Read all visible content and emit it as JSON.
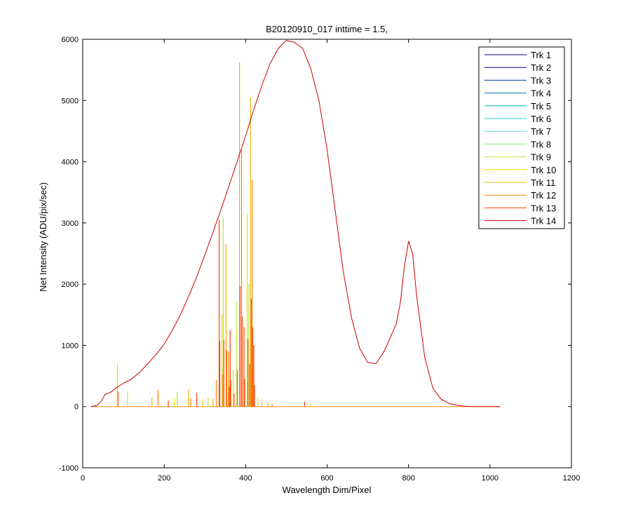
{
  "chart_data": {
    "type": "line",
    "title": "B20120910_017 inttime = 1.5,",
    "xlabel": "Wavelength Dim/Pixel",
    "ylabel": "Net Intensity (ADU/pix/sec)",
    "xlim": [
      0,
      1200
    ],
    "ylim": [
      -1000,
      6000
    ],
    "xticks": [
      0,
      200,
      400,
      600,
      800,
      1000,
      1200
    ],
    "yticks": [
      -1000,
      0,
      1000,
      2000,
      3000,
      4000,
      5000,
      6000
    ],
    "grid": false,
    "legend_position": "top-right",
    "series": [
      {
        "name": "Trk 1",
        "color": "#000080"
      },
      {
        "name": "Trk 2",
        "color": "#000099"
      },
      {
        "name": "Trk 3",
        "color": "#0040a0"
      },
      {
        "name": "Trk 4",
        "color": "#0070b0"
      },
      {
        "name": "Trk 5",
        "color": "#00b0d0"
      },
      {
        "name": "Trk 6",
        "color": "#20d0e0"
      },
      {
        "name": "Trk 7",
        "color": "#60e0e0"
      },
      {
        "name": "Trk 8",
        "color": "#90e080"
      },
      {
        "name": "Trk 9",
        "color": "#c0e040"
      },
      {
        "name": "Trk 10",
        "color": "#e0e000"
      },
      {
        "name": "Trk 11",
        "color": "#f0b000"
      },
      {
        "name": "Trk 12",
        "color": "#ff8000"
      },
      {
        "name": "Trk 13",
        "color": "#ff4000"
      },
      {
        "name": "Trk 14",
        "color": "#cc0000",
        "x": [
          20,
          35,
          45,
          55,
          70,
          85,
          100,
          120,
          140,
          160,
          180,
          200,
          220,
          240,
          260,
          280,
          300,
          320,
          340,
          360,
          380,
          400,
          420,
          440,
          460,
          480,
          500,
          520,
          540,
          560,
          580,
          600,
          620,
          640,
          660,
          680,
          700,
          720,
          740,
          760,
          770,
          780,
          790,
          800,
          810,
          820,
          840,
          860,
          880,
          900,
          920,
          940,
          960,
          1000,
          1025
        ],
        "y": [
          0,
          20,
          80,
          200,
          240,
          320,
          380,
          450,
          560,
          700,
          850,
          1020,
          1250,
          1500,
          1800,
          2120,
          2480,
          2850,
          3230,
          3620,
          4020,
          4420,
          4850,
          5250,
          5600,
          5850,
          5980,
          5950,
          5850,
          5520,
          5000,
          4200,
          3200,
          2200,
          1450,
          950,
          720,
          700,
          900,
          1200,
          1350,
          1700,
          2300,
          2700,
          2500,
          1800,
          800,
          300,
          120,
          50,
          20,
          5,
          0,
          0,
          0
        ]
      }
    ],
    "peaks": [
      {
        "x": 85,
        "y": 700
      },
      {
        "x": 110,
        "y": 250
      },
      {
        "x": 170,
        "y": 150
      },
      {
        "x": 185,
        "y": 270
      },
      {
        "x": 210,
        "y": 100
      },
      {
        "x": 225,
        "y": 130
      },
      {
        "x": 232,
        "y": 230
      },
      {
        "x": 260,
        "y": 290
      },
      {
        "x": 265,
        "y": 140
      },
      {
        "x": 280,
        "y": 220
      },
      {
        "x": 295,
        "y": 120
      },
      {
        "x": 308,
        "y": 150
      },
      {
        "x": 320,
        "y": 130
      },
      {
        "x": 328,
        "y": 430
      },
      {
        "x": 335,
        "y": 3050
      },
      {
        "x": 342,
        "y": 1500
      },
      {
        "x": 345,
        "y": 3100
      },
      {
        "x": 352,
        "y": 2650
      },
      {
        "x": 358,
        "y": 900
      },
      {
        "x": 362,
        "y": 1250
      },
      {
        "x": 370,
        "y": 600
      },
      {
        "x": 378,
        "y": 1700
      },
      {
        "x": 385,
        "y": 5620
      },
      {
        "x": 390,
        "y": 4200
      },
      {
        "x": 396,
        "y": 1300
      },
      {
        "x": 404,
        "y": 3150
      },
      {
        "x": 408,
        "y": 2000
      },
      {
        "x": 412,
        "y": 5050
      },
      {
        "x": 416,
        "y": 3700
      },
      {
        "x": 420,
        "y": 1000
      },
      {
        "x": 430,
        "y": 150
      },
      {
        "x": 440,
        "y": 120
      },
      {
        "x": 455,
        "y": 60
      },
      {
        "x": 465,
        "y": 40
      },
      {
        "x": 545,
        "y": 80
      },
      {
        "x": 560,
        "y": 50
      }
    ]
  }
}
